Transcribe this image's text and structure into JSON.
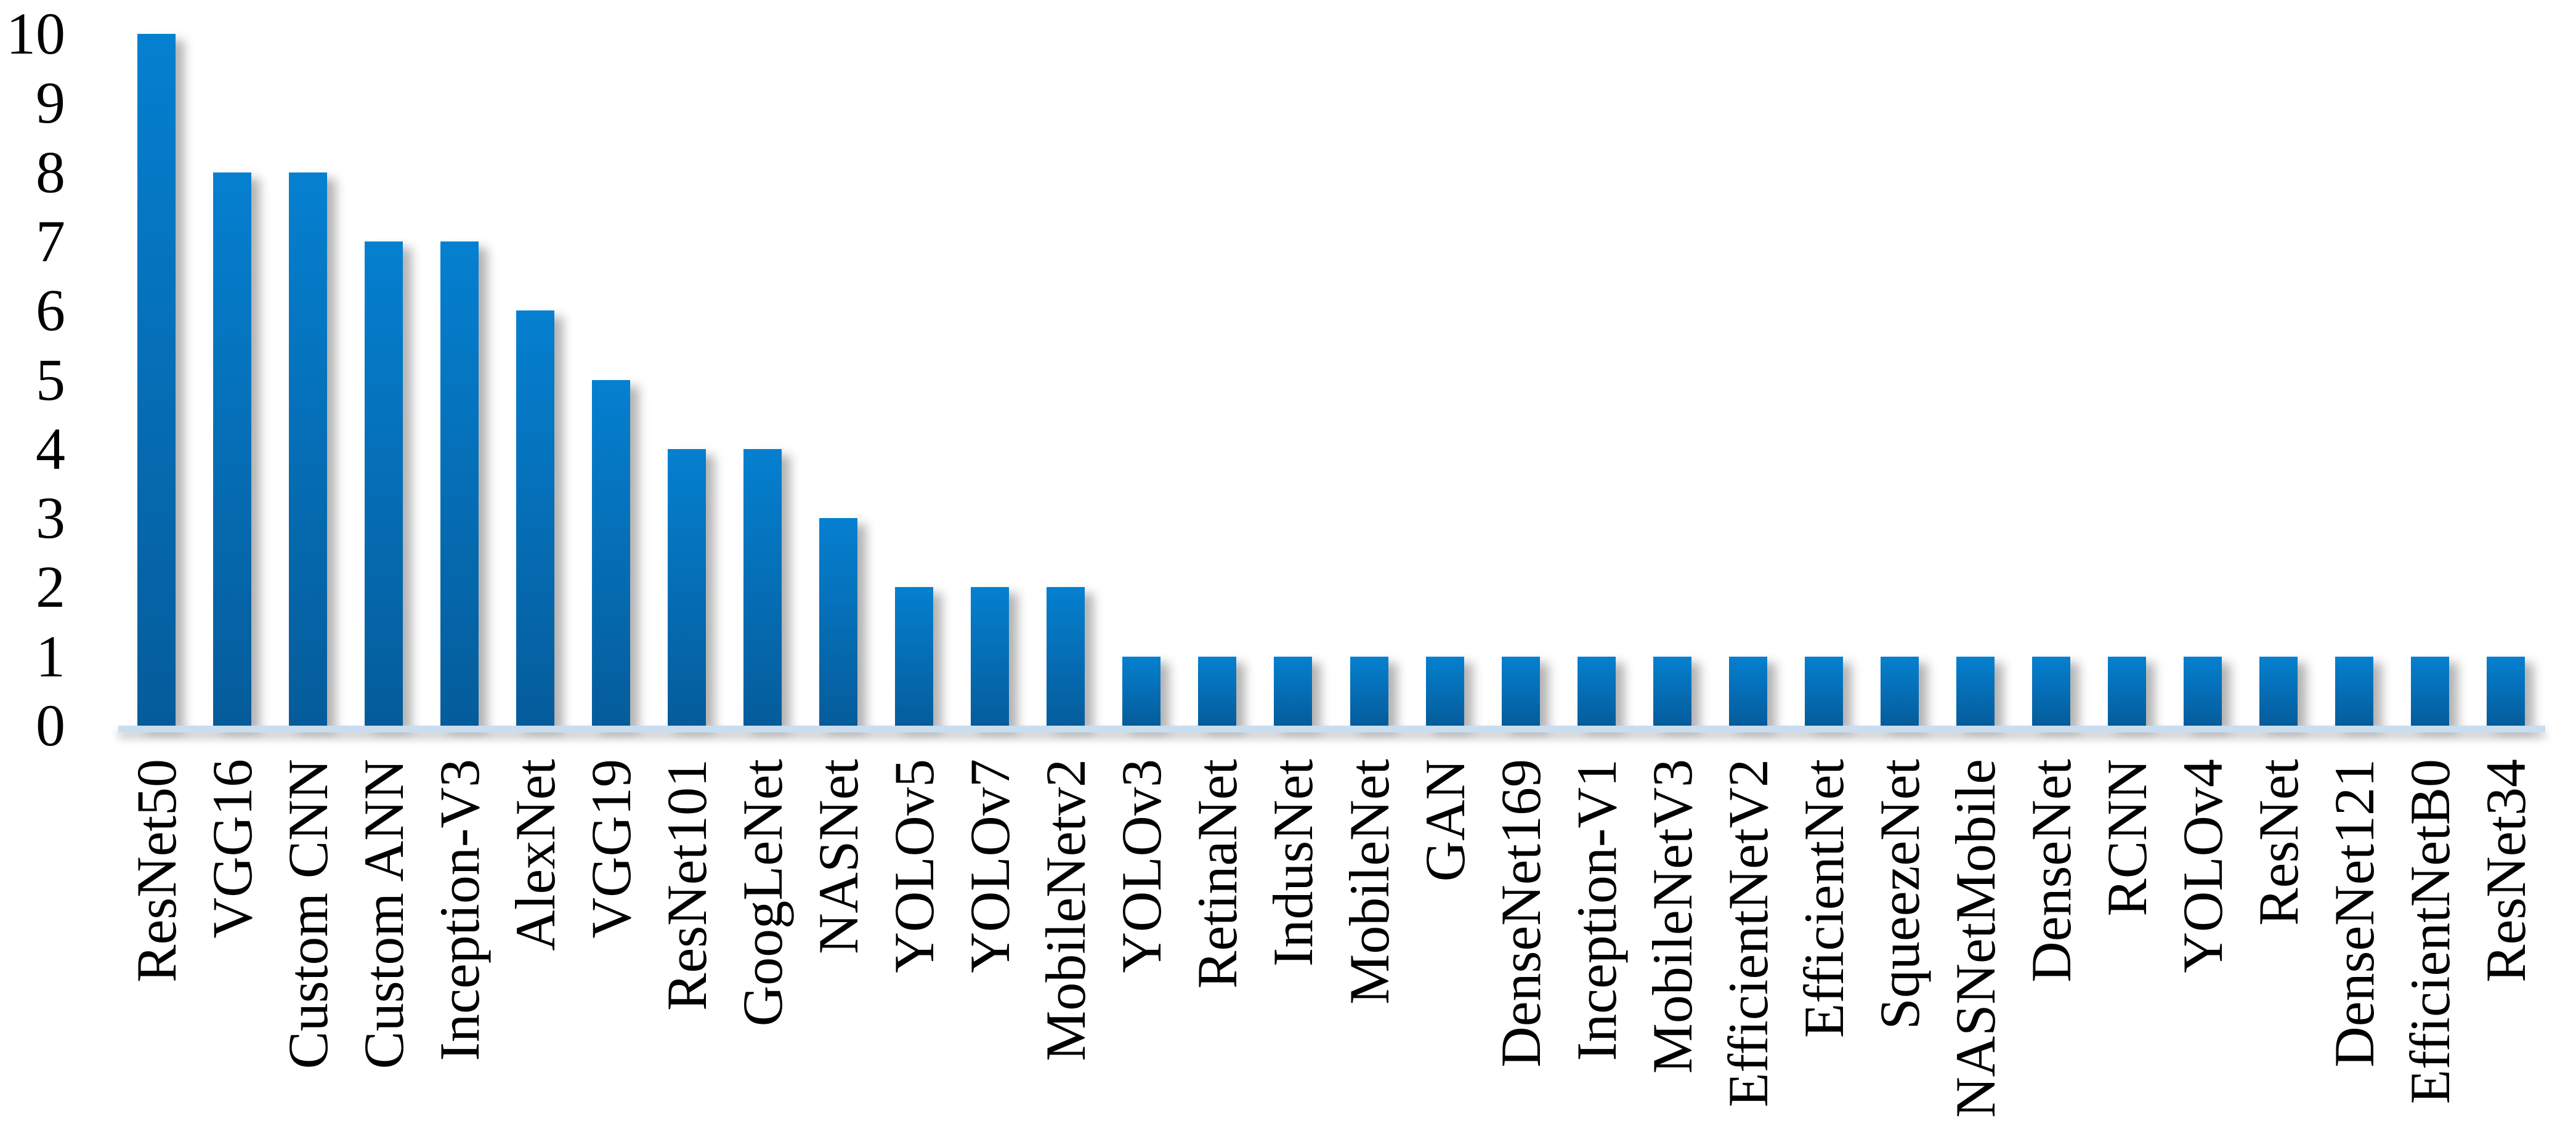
{
  "chart_data": {
    "type": "bar",
    "categories": [
      "ResNet50",
      "VGG16",
      "Custom CNN",
      "Custom ANN",
      "Inception-V3",
      "AlexNet",
      "VGG19",
      "ResNet101",
      "GoogLeNet",
      "NASNet",
      "YOLOv5",
      "YOLOv7",
      "MobileNetv2",
      "YOLOv3",
      "RetinaNet",
      "IndusNet",
      "MobileNet",
      "GAN",
      "DenseNet169",
      "Inception-V1",
      "MobileNetV3",
      "EfficientNetV2",
      "EfficientNet",
      "SqueezeNet",
      "NASNetMobile",
      "DenseNet",
      "RCNN",
      "YOLOv4",
      "ResNet",
      "DenseNet121",
      "EfficientNetB0",
      "ResNet34"
    ],
    "values": [
      10,
      8,
      8,
      7,
      7,
      6,
      5,
      4,
      4,
      3,
      2,
      2,
      2,
      1,
      1,
      1,
      1,
      1,
      1,
      1,
      1,
      1,
      1,
      1,
      1,
      1,
      1,
      1,
      1,
      1,
      1,
      1
    ],
    "xlabel": "",
    "ylabel": "",
    "ylim": [
      0,
      10
    ],
    "yticks": [
      0,
      1,
      2,
      3,
      4,
      5,
      6,
      7,
      8,
      9,
      10
    ],
    "grid": false,
    "legend_position": "none",
    "bar_orientation": "vertical",
    "xtick_rotation_degrees": 90
  },
  "colors": {
    "bar_gradient_top": "#0580d0",
    "bar_gradient_bottom": "#055c9b",
    "axis_line": "#c9ddf0",
    "tick_text": "#000000",
    "background": "#ffffff",
    "shadow": "rgba(0,0,0,0.30)"
  }
}
